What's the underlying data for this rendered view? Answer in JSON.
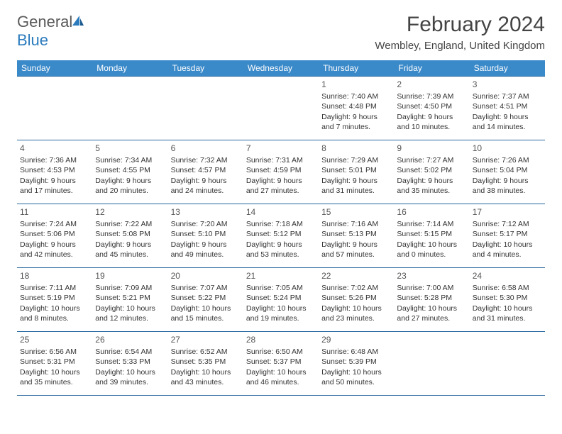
{
  "logo": {
    "text1": "General",
    "text2": "Blue"
  },
  "title": "February 2024",
  "location": "Wembley, England, United Kingdom",
  "colors": {
    "header_bg": "#3a89c9",
    "header_text": "#ffffff",
    "border": "#2b6aa0",
    "body_text": "#333333",
    "logo_blue": "#2b7bbd",
    "logo_gray": "#5a5a5a"
  },
  "dayHeaders": [
    "Sunday",
    "Monday",
    "Tuesday",
    "Wednesday",
    "Thursday",
    "Friday",
    "Saturday"
  ],
  "weeks": [
    [
      null,
      null,
      null,
      null,
      {
        "n": "1",
        "sunrise": "Sunrise: 7:40 AM",
        "sunset": "Sunset: 4:48 PM",
        "day1": "Daylight: 9 hours",
        "day2": "and 7 minutes."
      },
      {
        "n": "2",
        "sunrise": "Sunrise: 7:39 AM",
        "sunset": "Sunset: 4:50 PM",
        "day1": "Daylight: 9 hours",
        "day2": "and 10 minutes."
      },
      {
        "n": "3",
        "sunrise": "Sunrise: 7:37 AM",
        "sunset": "Sunset: 4:51 PM",
        "day1": "Daylight: 9 hours",
        "day2": "and 14 minutes."
      }
    ],
    [
      {
        "n": "4",
        "sunrise": "Sunrise: 7:36 AM",
        "sunset": "Sunset: 4:53 PM",
        "day1": "Daylight: 9 hours",
        "day2": "and 17 minutes."
      },
      {
        "n": "5",
        "sunrise": "Sunrise: 7:34 AM",
        "sunset": "Sunset: 4:55 PM",
        "day1": "Daylight: 9 hours",
        "day2": "and 20 minutes."
      },
      {
        "n": "6",
        "sunrise": "Sunrise: 7:32 AM",
        "sunset": "Sunset: 4:57 PM",
        "day1": "Daylight: 9 hours",
        "day2": "and 24 minutes."
      },
      {
        "n": "7",
        "sunrise": "Sunrise: 7:31 AM",
        "sunset": "Sunset: 4:59 PM",
        "day1": "Daylight: 9 hours",
        "day2": "and 27 minutes."
      },
      {
        "n": "8",
        "sunrise": "Sunrise: 7:29 AM",
        "sunset": "Sunset: 5:01 PM",
        "day1": "Daylight: 9 hours",
        "day2": "and 31 minutes."
      },
      {
        "n": "9",
        "sunrise": "Sunrise: 7:27 AM",
        "sunset": "Sunset: 5:02 PM",
        "day1": "Daylight: 9 hours",
        "day2": "and 35 minutes."
      },
      {
        "n": "10",
        "sunrise": "Sunrise: 7:26 AM",
        "sunset": "Sunset: 5:04 PM",
        "day1": "Daylight: 9 hours",
        "day2": "and 38 minutes."
      }
    ],
    [
      {
        "n": "11",
        "sunrise": "Sunrise: 7:24 AM",
        "sunset": "Sunset: 5:06 PM",
        "day1": "Daylight: 9 hours",
        "day2": "and 42 minutes."
      },
      {
        "n": "12",
        "sunrise": "Sunrise: 7:22 AM",
        "sunset": "Sunset: 5:08 PM",
        "day1": "Daylight: 9 hours",
        "day2": "and 45 minutes."
      },
      {
        "n": "13",
        "sunrise": "Sunrise: 7:20 AM",
        "sunset": "Sunset: 5:10 PM",
        "day1": "Daylight: 9 hours",
        "day2": "and 49 minutes."
      },
      {
        "n": "14",
        "sunrise": "Sunrise: 7:18 AM",
        "sunset": "Sunset: 5:12 PM",
        "day1": "Daylight: 9 hours",
        "day2": "and 53 minutes."
      },
      {
        "n": "15",
        "sunrise": "Sunrise: 7:16 AM",
        "sunset": "Sunset: 5:13 PM",
        "day1": "Daylight: 9 hours",
        "day2": "and 57 minutes."
      },
      {
        "n": "16",
        "sunrise": "Sunrise: 7:14 AM",
        "sunset": "Sunset: 5:15 PM",
        "day1": "Daylight: 10 hours",
        "day2": "and 0 minutes."
      },
      {
        "n": "17",
        "sunrise": "Sunrise: 7:12 AM",
        "sunset": "Sunset: 5:17 PM",
        "day1": "Daylight: 10 hours",
        "day2": "and 4 minutes."
      }
    ],
    [
      {
        "n": "18",
        "sunrise": "Sunrise: 7:11 AM",
        "sunset": "Sunset: 5:19 PM",
        "day1": "Daylight: 10 hours",
        "day2": "and 8 minutes."
      },
      {
        "n": "19",
        "sunrise": "Sunrise: 7:09 AM",
        "sunset": "Sunset: 5:21 PM",
        "day1": "Daylight: 10 hours",
        "day2": "and 12 minutes."
      },
      {
        "n": "20",
        "sunrise": "Sunrise: 7:07 AM",
        "sunset": "Sunset: 5:22 PM",
        "day1": "Daylight: 10 hours",
        "day2": "and 15 minutes."
      },
      {
        "n": "21",
        "sunrise": "Sunrise: 7:05 AM",
        "sunset": "Sunset: 5:24 PM",
        "day1": "Daylight: 10 hours",
        "day2": "and 19 minutes."
      },
      {
        "n": "22",
        "sunrise": "Sunrise: 7:02 AM",
        "sunset": "Sunset: 5:26 PM",
        "day1": "Daylight: 10 hours",
        "day2": "and 23 minutes."
      },
      {
        "n": "23",
        "sunrise": "Sunrise: 7:00 AM",
        "sunset": "Sunset: 5:28 PM",
        "day1": "Daylight: 10 hours",
        "day2": "and 27 minutes."
      },
      {
        "n": "24",
        "sunrise": "Sunrise: 6:58 AM",
        "sunset": "Sunset: 5:30 PM",
        "day1": "Daylight: 10 hours",
        "day2": "and 31 minutes."
      }
    ],
    [
      {
        "n": "25",
        "sunrise": "Sunrise: 6:56 AM",
        "sunset": "Sunset: 5:31 PM",
        "day1": "Daylight: 10 hours",
        "day2": "and 35 minutes."
      },
      {
        "n": "26",
        "sunrise": "Sunrise: 6:54 AM",
        "sunset": "Sunset: 5:33 PM",
        "day1": "Daylight: 10 hours",
        "day2": "and 39 minutes."
      },
      {
        "n": "27",
        "sunrise": "Sunrise: 6:52 AM",
        "sunset": "Sunset: 5:35 PM",
        "day1": "Daylight: 10 hours",
        "day2": "and 43 minutes."
      },
      {
        "n": "28",
        "sunrise": "Sunrise: 6:50 AM",
        "sunset": "Sunset: 5:37 PM",
        "day1": "Daylight: 10 hours",
        "day2": "and 46 minutes."
      },
      {
        "n": "29",
        "sunrise": "Sunrise: 6:48 AM",
        "sunset": "Sunset: 5:39 PM",
        "day1": "Daylight: 10 hours",
        "day2": "and 50 minutes."
      },
      null,
      null
    ]
  ]
}
